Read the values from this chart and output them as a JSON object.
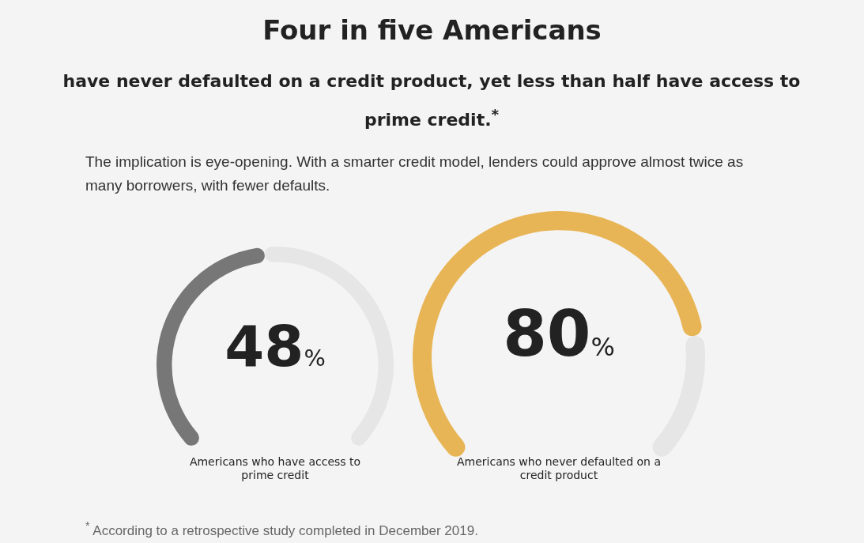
{
  "chart_data": [
    {
      "type": "donut",
      "title": "Four in five Americans",
      "subtitle": "have never defaulted on a credit product, yet less than half have access to prime credit.$^{*}$",
      "annotations": [
        "The implication is eye-opening. With a smarter credit model, lenders could approve almost twice as many borrowers, with fewer defaults."
      ],
      "categories": [
        null,
        null
      ],
      "values": [
        48,
        52
      ],
      "colors": [
        "#777777",
        "#e6e6e6"
      ],
      "value_labels": [
        "48%",
        null
      ],
      "xlabel": "Americans who have access to prime credit"
    },
    {
      "type": "donut",
      "categories": [
        null,
        null
      ],
      "values": [
        80,
        20
      ],
      "colors": [
        "#e8b556",
        "#e6e6e6"
      ],
      "value_labels": [
        "80%",
        null
      ],
      "xlabel": "Americans who never defaulted on a credit product",
      "annotations": [
        "$^{*}$ According to a retrospective study completed in December 2019."
      ]
    }
  ]
}
